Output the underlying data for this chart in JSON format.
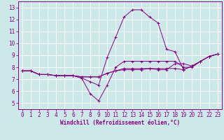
{
  "xlabel": "Windchill (Refroidissement éolien,°C)",
  "xlim": [
    -0.5,
    23.5
  ],
  "ylim": [
    4.5,
    13.5
  ],
  "yticks": [
    5,
    6,
    7,
    8,
    9,
    10,
    11,
    12,
    13
  ],
  "xticks": [
    0,
    1,
    2,
    3,
    4,
    5,
    6,
    7,
    8,
    9,
    10,
    11,
    12,
    13,
    14,
    15,
    16,
    17,
    18,
    19,
    20,
    21,
    22,
    23
  ],
  "bg_color": "#cce8e8",
  "line_color": "#880088",
  "grid_color": "#ffffff",
  "series": [
    [
      7.7,
      7.7,
      7.4,
      7.4,
      7.3,
      7.3,
      7.3,
      7.1,
      6.8,
      6.5,
      8.8,
      10.5,
      12.2,
      12.8,
      12.8,
      12.2,
      11.7,
      9.5,
      9.3,
      7.8,
      8.1,
      8.5,
      8.9,
      9.1
    ],
    [
      7.7,
      7.7,
      7.4,
      7.4,
      7.3,
      7.3,
      7.3,
      7.1,
      5.8,
      5.2,
      6.5,
      8.0,
      8.5,
      8.5,
      8.5,
      8.5,
      8.5,
      8.5,
      8.5,
      8.0,
      8.0,
      8.5,
      8.9,
      9.1
    ],
    [
      7.7,
      7.7,
      7.4,
      7.4,
      7.3,
      7.3,
      7.3,
      7.2,
      7.2,
      7.2,
      7.5,
      7.7,
      7.8,
      7.8,
      7.8,
      7.9,
      7.9,
      7.9,
      7.9,
      7.8,
      8.1,
      8.5,
      8.9,
      9.1
    ],
    [
      7.7,
      7.7,
      7.4,
      7.4,
      7.3,
      7.3,
      7.3,
      7.2,
      7.2,
      7.2,
      7.5,
      7.7,
      7.9,
      7.9,
      7.9,
      7.9,
      7.8,
      7.8,
      8.3,
      8.3,
      8.1,
      8.5,
      8.9,
      9.1
    ]
  ],
  "tick_fontsize": 5.5,
  "xlabel_fontsize": 5.5
}
